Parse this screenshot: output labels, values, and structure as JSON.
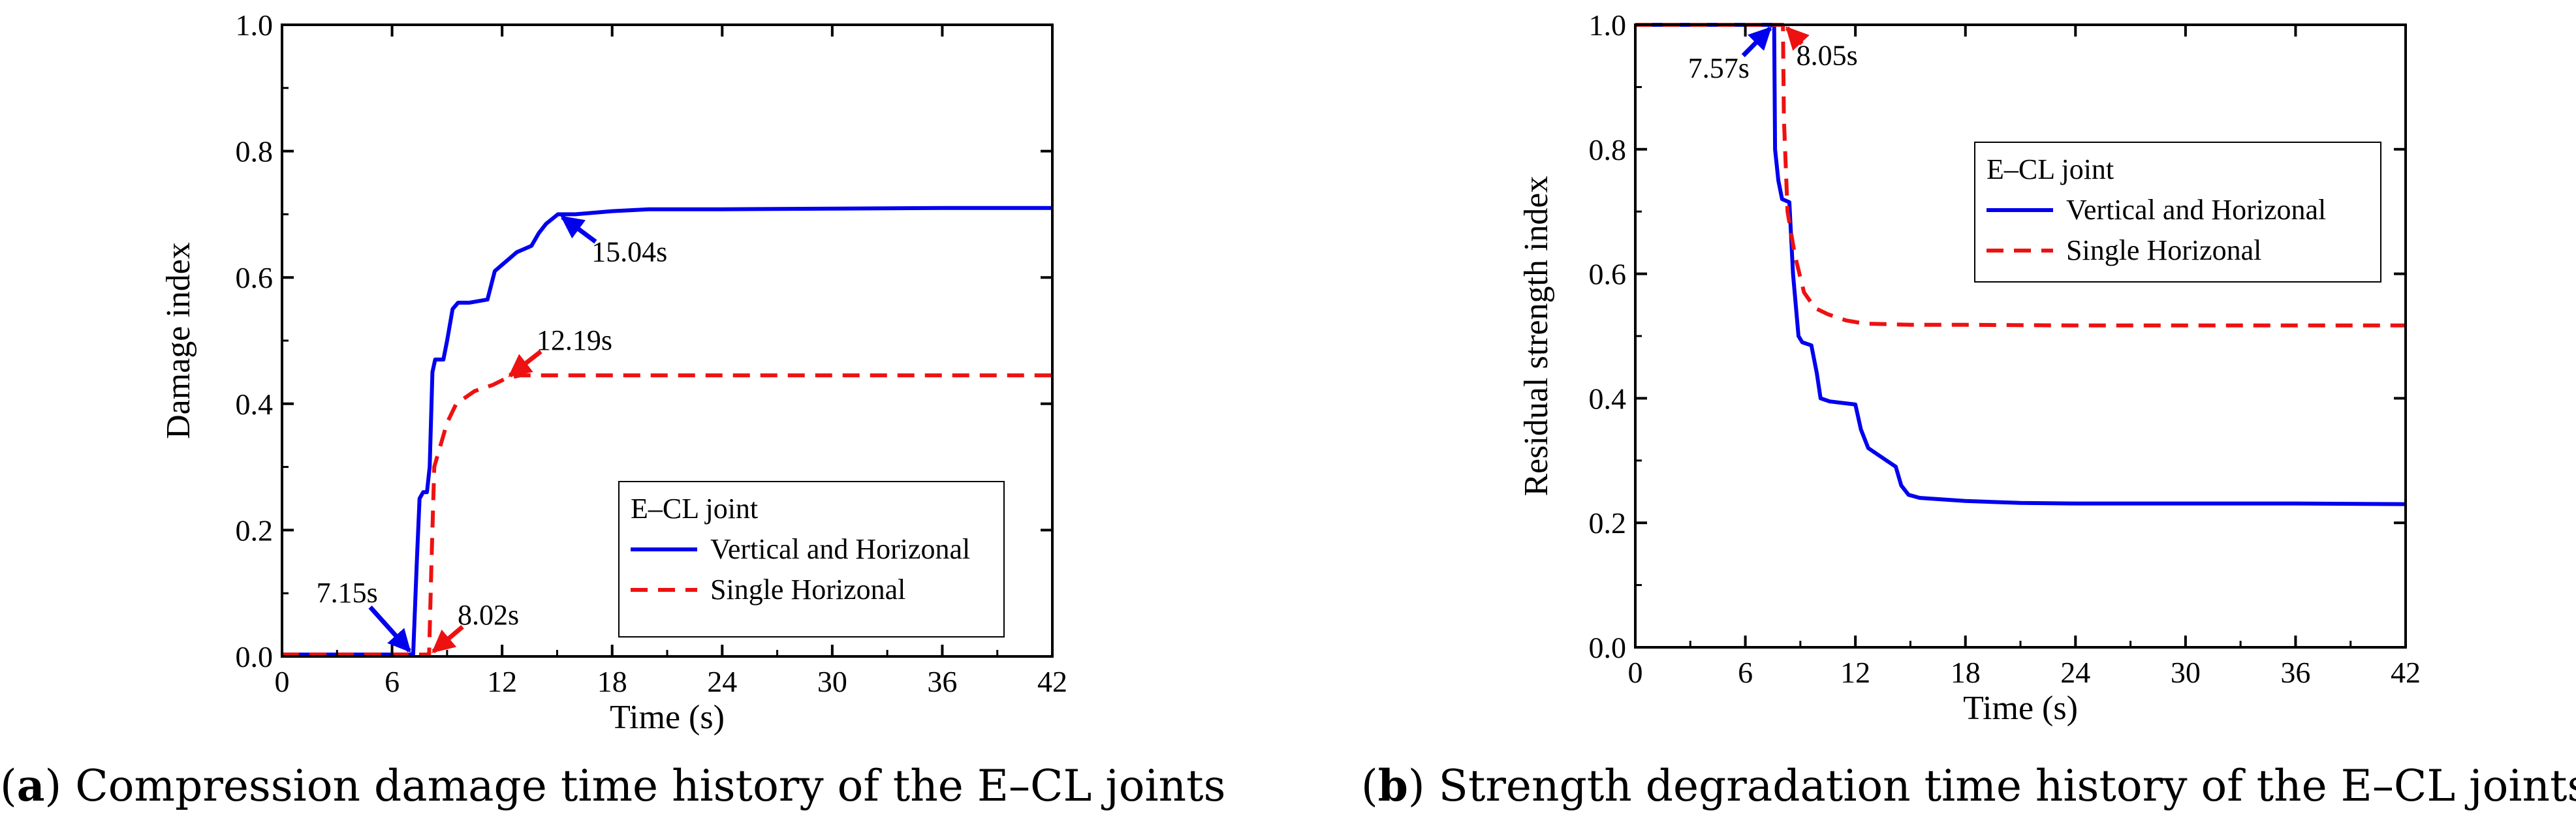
{
  "chart_data": [
    {
      "type": "line",
      "id": "a",
      "xlabel": "Time (s)",
      "ylabel": "Damage index",
      "xlim": [
        0,
        42
      ],
      "ylim": [
        0,
        1
      ],
      "xticks": [
        0,
        6,
        12,
        18,
        24,
        30,
        36,
        42
      ],
      "yticks": [
        0.0,
        0.2,
        0.4,
        0.6,
        0.8,
        1.0
      ],
      "xtick_labels": [
        "0",
        "6",
        "12",
        "18",
        "24",
        "30",
        "36",
        "42"
      ],
      "ytick_labels": [
        "0.0",
        "0.2",
        "0.4",
        "0.6",
        "0.8",
        "1.0"
      ],
      "legend": {
        "title": "E–CL joint",
        "placement": "lower-right"
      },
      "series": [
        {
          "name": "Vertical and Horizonal",
          "color": "#0000ee",
          "style": "solid",
          "points": [
            [
              0,
              0.003
            ],
            [
              7.0,
              0.003
            ],
            [
              7.15,
              0.003
            ],
            [
              7.35,
              0.15
            ],
            [
              7.5,
              0.25
            ],
            [
              7.7,
              0.26
            ],
            [
              7.9,
              0.26
            ],
            [
              8.05,
              0.3
            ],
            [
              8.2,
              0.45
            ],
            [
              8.35,
              0.47
            ],
            [
              8.8,
              0.47
            ],
            [
              9.0,
              0.5
            ],
            [
              9.3,
              0.55
            ],
            [
              9.6,
              0.56
            ],
            [
              10.2,
              0.56
            ],
            [
              11.2,
              0.565
            ],
            [
              11.6,
              0.61
            ],
            [
              12.0,
              0.62
            ],
            [
              12.4,
              0.63
            ],
            [
              12.8,
              0.64
            ],
            [
              13.2,
              0.645
            ],
            [
              13.6,
              0.65
            ],
            [
              14.0,
              0.67
            ],
            [
              14.4,
              0.685
            ],
            [
              15.04,
              0.7
            ],
            [
              16.0,
              0.7
            ],
            [
              18.0,
              0.705
            ],
            [
              20.0,
              0.708
            ],
            [
              24.0,
              0.708
            ],
            [
              30.0,
              0.709
            ],
            [
              36.0,
              0.71
            ],
            [
              42.0,
              0.71
            ]
          ]
        },
        {
          "name": "Single Horizonal",
          "color": "#ee1111",
          "style": "dashed",
          "points": [
            [
              0,
              0.003
            ],
            [
              7.5,
              0.003
            ],
            [
              8.02,
              0.003
            ],
            [
              8.15,
              0.15
            ],
            [
              8.3,
              0.3
            ],
            [
              8.6,
              0.33
            ],
            [
              9.0,
              0.37
            ],
            [
              9.5,
              0.4
            ],
            [
              10.5,
              0.42
            ],
            [
              11.5,
              0.43
            ],
            [
              12.19,
              0.44
            ],
            [
              13.0,
              0.445
            ],
            [
              15.0,
              0.445
            ],
            [
              18.0,
              0.445
            ],
            [
              24.0,
              0.445
            ],
            [
              30.0,
              0.445
            ],
            [
              36.0,
              0.445
            ],
            [
              42.0,
              0.445
            ]
          ]
        }
      ],
      "annotations": [
        {
          "text": "7.15s",
          "color": "#0000ee",
          "x": 7.15,
          "y": 0.003,
          "tx": 3.8,
          "ty": 0.1
        },
        {
          "text": "8.02s",
          "color": "#ee1111",
          "x": 8.02,
          "y": 0.003,
          "tx": 11.0,
          "ty": 0.065
        },
        {
          "text": "15.04s",
          "color": "#0000ee",
          "x": 15.04,
          "y": 0.7,
          "tx": 18.3,
          "ty": 0.64
        },
        {
          "text": "12.19s",
          "color": "#ee1111",
          "x": 12.19,
          "y": 0.44,
          "tx": 15.3,
          "ty": 0.5
        }
      ],
      "caption_label": "a",
      "caption_text": "Compression damage time history of the E–CL joints"
    },
    {
      "type": "line",
      "id": "b",
      "xlabel": "Time (s)",
      "ylabel": "Residual strength index",
      "xlim": [
        0,
        42
      ],
      "ylim": [
        0,
        1
      ],
      "xticks": [
        0,
        6,
        12,
        18,
        24,
        30,
        36,
        42
      ],
      "yticks": [
        0.0,
        0.2,
        0.4,
        0.6,
        0.8,
        1.0
      ],
      "xtick_labels": [
        "0",
        "6",
        "12",
        "18",
        "24",
        "30",
        "36",
        "42"
      ],
      "ytick_labels": [
        "0.0",
        "0.2",
        "0.4",
        "0.6",
        "0.8",
        "1.0"
      ],
      "legend": {
        "title": "E–CL joint",
        "placement": "upper-right"
      },
      "series": [
        {
          "name": "Vertical and Horizonal",
          "color": "#0000ee",
          "style": "solid",
          "points": [
            [
              0,
              1.0
            ],
            [
              7.57,
              1.0
            ],
            [
              7.62,
              0.8
            ],
            [
              7.8,
              0.75
            ],
            [
              8.0,
              0.72
            ],
            [
              8.4,
              0.715
            ],
            [
              8.6,
              0.6
            ],
            [
              8.9,
              0.5
            ],
            [
              9.1,
              0.49
            ],
            [
              9.6,
              0.485
            ],
            [
              9.9,
              0.44
            ],
            [
              10.1,
              0.4
            ],
            [
              10.6,
              0.395
            ],
            [
              12.0,
              0.39
            ],
            [
              12.3,
              0.35
            ],
            [
              12.7,
              0.32
            ],
            [
              13.2,
              0.31
            ],
            [
              13.7,
              0.3
            ],
            [
              14.2,
              0.29
            ],
            [
              14.5,
              0.26
            ],
            [
              14.9,
              0.245
            ],
            [
              15.5,
              0.24
            ],
            [
              18.0,
              0.235
            ],
            [
              21.0,
              0.232
            ],
            [
              24.0,
              0.231
            ],
            [
              30.0,
              0.231
            ],
            [
              36.0,
              0.231
            ],
            [
              42.0,
              0.23
            ]
          ]
        },
        {
          "name": "Single Horizonal",
          "color": "#ee1111",
          "style": "dashed",
          "points": [
            [
              0,
              1.0
            ],
            [
              8.05,
              1.0
            ],
            [
              8.1,
              0.85
            ],
            [
              8.3,
              0.7
            ],
            [
              8.7,
              0.63
            ],
            [
              9.2,
              0.57
            ],
            [
              9.8,
              0.545
            ],
            [
              10.5,
              0.535
            ],
            [
              11.5,
              0.525
            ],
            [
              12.5,
              0.52
            ],
            [
              15.0,
              0.518
            ],
            [
              18.0,
              0.518
            ],
            [
              24.0,
              0.517
            ],
            [
              30.0,
              0.517
            ],
            [
              36.0,
              0.517
            ],
            [
              42.0,
              0.517
            ]
          ]
        }
      ],
      "annotations": [
        {
          "text": "7.57s",
          "color": "#0000ee",
          "x": 7.57,
          "y": 1.0,
          "tx": 4.8,
          "ty": 0.93
        },
        {
          "text": "8.05s",
          "color": "#ee1111",
          "x": 8.05,
          "y": 1.0,
          "tx": 10.2,
          "ty": 0.95
        }
      ],
      "caption_label": "b",
      "caption_text": "Strength degradation time history of the E–CL joints"
    }
  ]
}
